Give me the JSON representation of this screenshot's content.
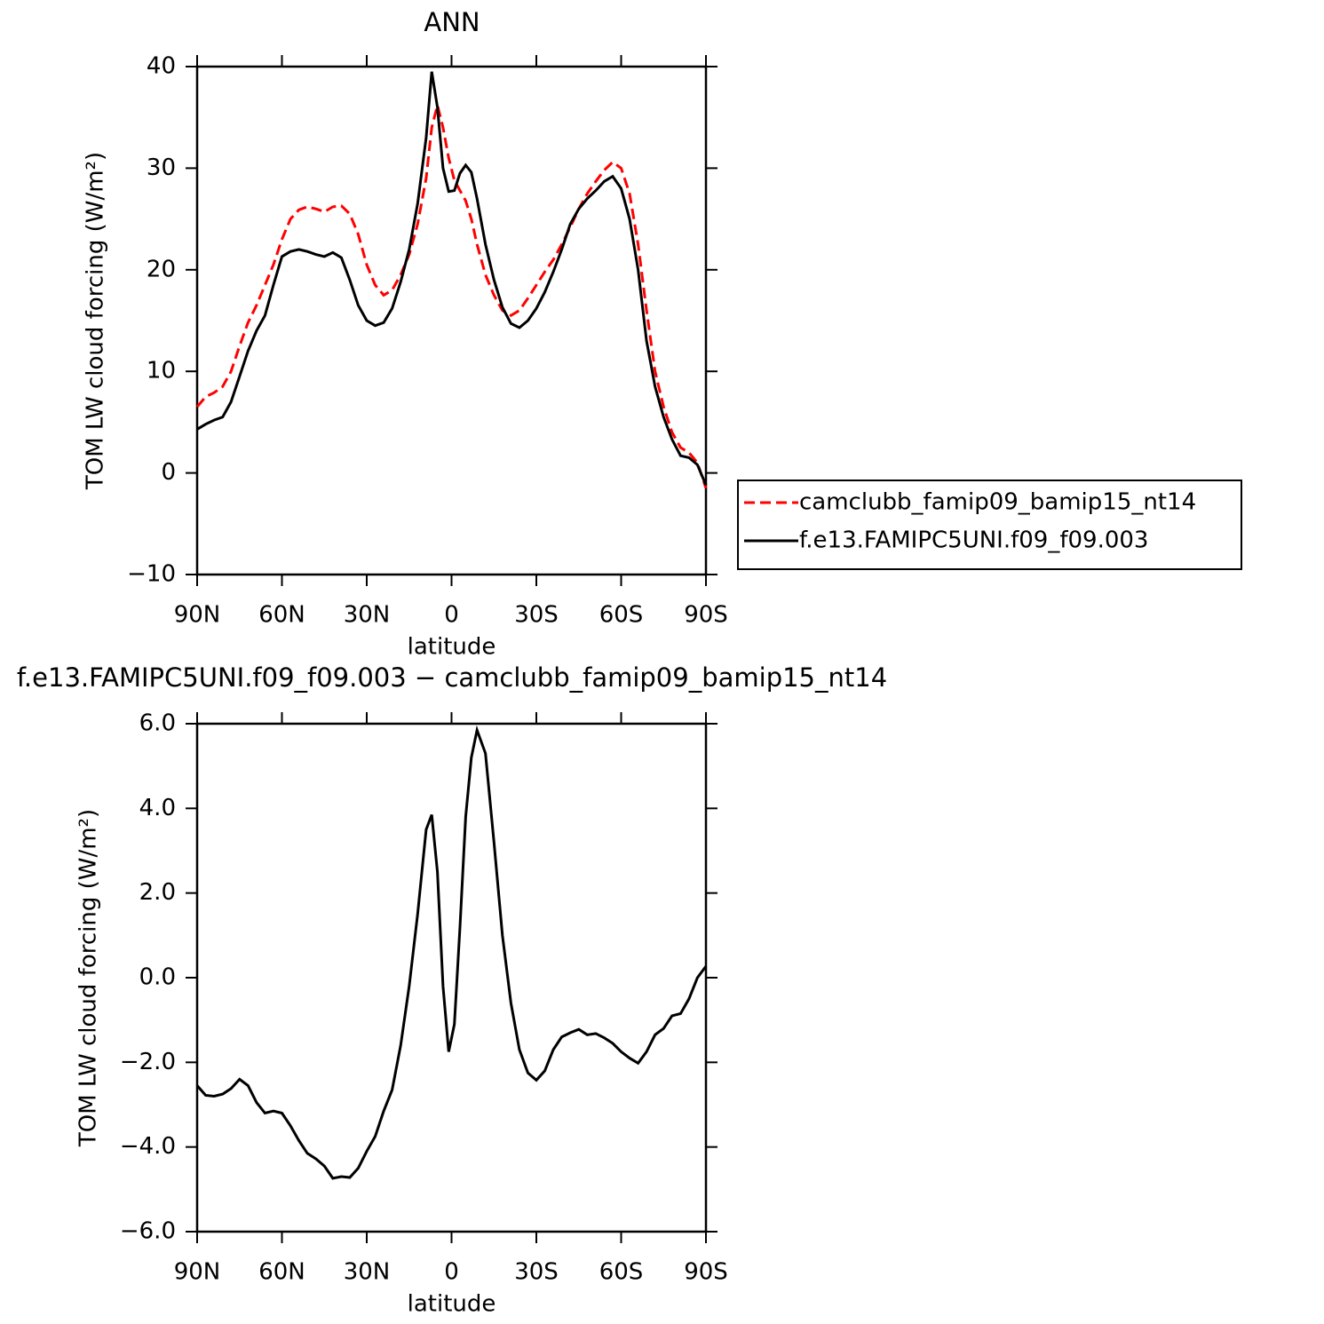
{
  "chart_data": [
    {
      "type": "line",
      "title": "ANN",
      "xlabel": "latitude",
      "ylabel": "TOM LW cloud forcing (W/m²)",
      "x": [
        90,
        87,
        84,
        81,
        78,
        75,
        72,
        69,
        66,
        63,
        60,
        57,
        54,
        51,
        48,
        45,
        42,
        39,
        36,
        33,
        30,
        27,
        24,
        21,
        18,
        15,
        12,
        9,
        7,
        5,
        3,
        1,
        -1,
        -3,
        -5,
        -7,
        -9,
        -12,
        -15,
        -18,
        -21,
        -24,
        -27,
        -30,
        -33,
        -36,
        -39,
        -42,
        -45,
        -48,
        -51,
        -54,
        -57,
        -60,
        -63,
        -66,
        -69,
        -72,
        -75,
        -78,
        -81,
        -84,
        -87,
        -90
      ],
      "series": [
        {
          "name": "camclubb_famip09_bamip15_nt14",
          "color": "#ff0000",
          "dashed": true,
          "values": [
            6.5,
            7.5,
            7.9,
            8.5,
            10,
            12.5,
            14.8,
            16.5,
            18.5,
            20.5,
            23,
            25,
            25.9,
            26.2,
            26,
            25.7,
            26.2,
            26.3,
            25.5,
            23.5,
            20.5,
            18.5,
            17.5,
            18,
            19.5,
            21.5,
            24.5,
            29,
            34,
            36.2,
            34,
            31,
            28.8,
            27.8,
            26.8,
            25,
            22.5,
            19.5,
            17.5,
            16,
            15.5,
            16,
            17.2,
            18.5,
            19.8,
            21,
            22.5,
            24.2,
            26,
            27.5,
            28.7,
            29.8,
            30.6,
            30,
            27.5,
            22.5,
            16,
            10,
            6.5,
            4,
            2.5,
            2,
            1,
            -1.5
          ]
        },
        {
          "name": "f.e13.FAMIPC5UNI.f09_f09.003",
          "color": "#000000",
          "dashed": false,
          "values": [
            4.3,
            4.8,
            5.2,
            5.5,
            7,
            9.5,
            12,
            14,
            15.5,
            18.5,
            21.3,
            21.8,
            22,
            21.8,
            21.5,
            21.3,
            21.7,
            21.2,
            19,
            16.5,
            15,
            14.5,
            14.8,
            16.2,
            18.8,
            22,
            26.5,
            33,
            39.5,
            36,
            30,
            27.7,
            27.8,
            29.5,
            30.3,
            29.6,
            27,
            22.5,
            19,
            16.3,
            14.7,
            14.3,
            15,
            16.2,
            17.8,
            19.8,
            22,
            24.5,
            26,
            27,
            27.8,
            28.7,
            29.2,
            28,
            25,
            20,
            13,
            8.5,
            5.5,
            3.3,
            1.7,
            1.5,
            0.8,
            -1.2
          ]
        }
      ],
      "xlim": [
        90,
        -90
      ],
      "xticks": [
        {
          "value": 90,
          "label": "90N"
        },
        {
          "value": 60,
          "label": "60N"
        },
        {
          "value": 30,
          "label": "30N"
        },
        0,
        {
          "value": -30,
          "label": "30S"
        },
        {
          "value": -60,
          "label": "60S"
        },
        {
          "value": -90,
          "label": "90S"
        }
      ],
      "ylim": [
        -10,
        40
      ],
      "yticks": [
        {
          "value": -10,
          "label": "−10"
        },
        0,
        10,
        20,
        30,
        40
      ],
      "legend": "right"
    },
    {
      "type": "line",
      "title": "f.e13.FAMIPC5UNI.f09_f09.003 − camclubb_famip09_bamip15_nt14",
      "xlabel": "latitude",
      "ylabel": "TOM LW cloud forcing (W/m²)",
      "x": [
        90,
        87,
        84,
        81,
        78,
        75,
        72,
        69,
        66,
        63,
        60,
        57,
        54,
        51,
        48,
        45,
        42,
        39,
        36,
        33,
        30,
        27,
        24,
        21,
        18,
        15,
        12,
        9,
        7,
        5,
        3,
        1,
        -1,
        -3,
        -5,
        -7,
        -9,
        -12,
        -15,
        -18,
        -21,
        -24,
        -27,
        -30,
        -33,
        -36,
        -39,
        -42,
        -45,
        -48,
        -51,
        -54,
        -57,
        -60,
        -63,
        -66,
        -69,
        -72,
        -75,
        -78,
        -81,
        -84,
        -87,
        -90
      ],
      "values": [
        -2.55,
        -2.78,
        -2.8,
        -2.75,
        -2.62,
        -2.4,
        -2.55,
        -2.95,
        -3.2,
        -3.15,
        -3.2,
        -3.5,
        -3.85,
        -4.15,
        -4.28,
        -4.45,
        -4.74,
        -4.7,
        -4.72,
        -4.5,
        -4.1,
        -3.75,
        -3.15,
        -2.65,
        -1.6,
        -0.2,
        1.5,
        3.5,
        3.85,
        2.5,
        -0.2,
        -1.75,
        -1.1,
        1.2,
        3.8,
        5.2,
        5.85,
        5.3,
        3.2,
        1.0,
        -0.6,
        -1.7,
        -2.25,
        -2.42,
        -2.2,
        -1.7,
        -1.4,
        -1.3,
        -1.22,
        -1.35,
        -1.32,
        -1.42,
        -1.55,
        -1.75,
        -1.9,
        -2.02,
        -1.75,
        -1.35,
        -1.2,
        -0.9,
        -0.85,
        -0.5,
        0.0,
        0.27
      ],
      "color": "#000000",
      "xlim": [
        90,
        -90
      ],
      "xticks": [
        {
          "value": 90,
          "label": "90N"
        },
        {
          "value": 60,
          "label": "60N"
        },
        {
          "value": 30,
          "label": "30N"
        },
        0,
        {
          "value": -30,
          "label": "30S"
        },
        {
          "value": -60,
          "label": "60S"
        },
        {
          "value": -90,
          "label": "90S"
        }
      ],
      "ylim": [
        -6,
        6
      ],
      "yticks": [
        {
          "value": -6,
          "label": "−6.0"
        },
        {
          "value": -4,
          "label": "−4.0"
        },
        {
          "value": -2,
          "label": "−2.0"
        },
        {
          "value": 0,
          "label": "0.0"
        },
        {
          "value": 2,
          "label": "2.0"
        },
        {
          "value": 4,
          "label": "4.0"
        },
        {
          "value": 6,
          "label": "6.0"
        }
      ]
    }
  ]
}
